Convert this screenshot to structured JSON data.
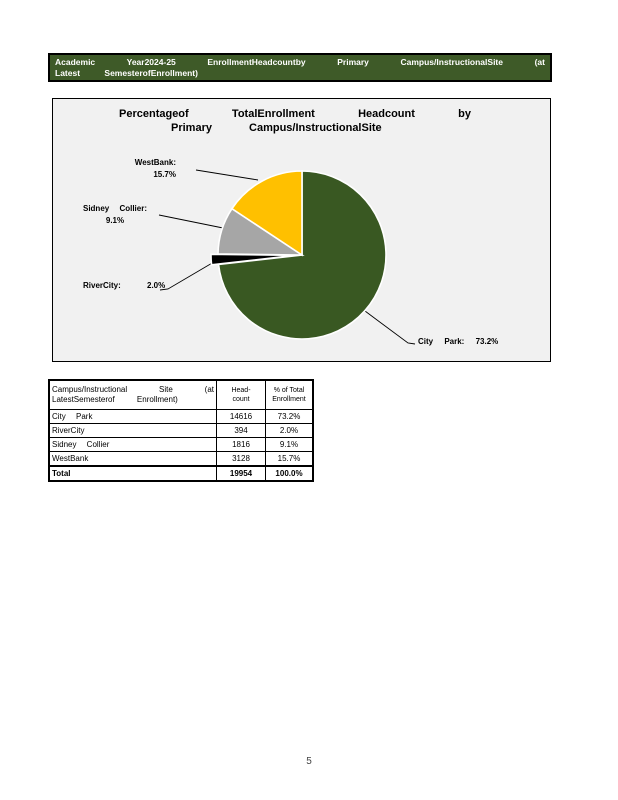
{
  "header": {
    "line1": "Academic Year2024-25 EnrollmentHeadcountby Primary Campus/InstructionalSite (at",
    "line2": "Latest SemesterofEnrollment)",
    "bg_color": "#3E5A28",
    "text_color": "#FFFFFF"
  },
  "chart": {
    "title_line1": "Percentageof TotalEnrollment Headcount by",
    "title_line2": "Primary Campus/InstructionalSite",
    "panel_bg": "#F1F1F1",
    "callouts": {
      "west_bank": {
        "line1": "WestBank:",
        "line2": "15.7%"
      },
      "sidney_collier": {
        "line1": "Sidney Collier:",
        "line2": "9.1%"
      },
      "river_city": {
        "text": "RiverCity: 2.0%"
      },
      "city_park": {
        "text": "City Park: 73.2%"
      }
    }
  },
  "chart_data": {
    "type": "pie",
    "title": "Percentage of Total Enrollment Headcount by Primary Campus/Instructional Site",
    "direction": "clockwise",
    "start_angle_deg": 0,
    "slices": [
      {
        "label": "City Park",
        "value": 73.2,
        "color": "#395822",
        "exploded": false
      },
      {
        "label": "River City",
        "value": 2.0,
        "color": "#000000",
        "exploded": true
      },
      {
        "label": "Sidney Collier",
        "value": 9.1,
        "color": "#A6A6A6",
        "exploded": false
      },
      {
        "label": "West Bank",
        "value": 15.7,
        "color": "#FFC000",
        "exploded": false
      }
    ]
  },
  "table": {
    "header": {
      "col1_line1": "Campus/Instructional Site (at",
      "col1_line2": "LatestSemesterof Enrollment)",
      "col2_line1": "Head-",
      "col2_line2": "count",
      "col3_line1": "% of Total",
      "col3_line2": "Enrollment"
    },
    "rows": [
      {
        "site": "City Park",
        "headcount": "14616",
        "pct": "73.2%"
      },
      {
        "site": "RiverCity",
        "headcount": "394",
        "pct": "2.0%"
      },
      {
        "site": "Sidney Collier",
        "headcount": "1816",
        "pct": "9.1%"
      },
      {
        "site": "WestBank",
        "headcount": "3128",
        "pct": "15.7%"
      }
    ],
    "total": {
      "site": "Total",
      "headcount": "19954",
      "pct": "100.0%"
    }
  },
  "footer": {
    "page_number": "5"
  }
}
